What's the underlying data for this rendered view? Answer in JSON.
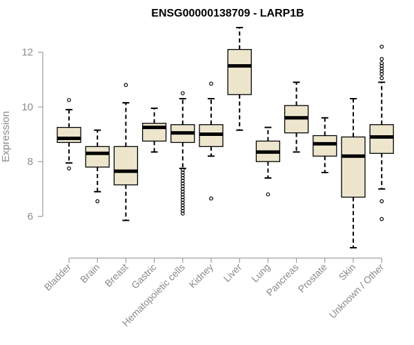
{
  "chart_data": {
    "type": "boxplot",
    "title": "ENSG00000138709 - LARP1B",
    "xlabel": "",
    "ylabel": "Expression",
    "ylim": [
      4.7,
      13.0
    ],
    "yticks": [
      6,
      8,
      10,
      12
    ],
    "colors": {
      "box_fill": "#ede6cd",
      "line": "#000000",
      "axis": "#8a8a8a"
    },
    "categories": [
      "Bladder",
      "Brain",
      "Breast",
      "Gastric",
      "Hematopoietic cells",
      "Kidney",
      "Liver",
      "Lung",
      "Pancreas",
      "Prostate",
      "Skin",
      "Unknown / Other"
    ],
    "boxes": [
      {
        "name": "Bladder",
        "wlo": 7.95,
        "q1": 8.7,
        "median": 8.85,
        "q3": 9.25,
        "whi": 9.9,
        "outliers": [
          7.75,
          10.25
        ]
      },
      {
        "name": "Brain",
        "wlo": 6.9,
        "q1": 7.8,
        "median": 8.3,
        "q3": 8.55,
        "whi": 9.15,
        "outliers": [
          6.55
        ]
      },
      {
        "name": "Breast",
        "wlo": 5.85,
        "q1": 7.15,
        "median": 7.65,
        "q3": 8.55,
        "whi": 10.15,
        "outliers": [
          10.8
        ]
      },
      {
        "name": "Gastric",
        "wlo": 8.35,
        "q1": 8.75,
        "median": 9.25,
        "q3": 9.4,
        "whi": 9.95,
        "outliers": []
      },
      {
        "name": "Hematopoietic cells",
        "wlo": 7.75,
        "q1": 8.7,
        "median": 9.05,
        "q3": 9.35,
        "whi": 10.3,
        "outliers": [
          10.5,
          7.7,
          7.6,
          7.5,
          7.4,
          7.3,
          7.2,
          7.1,
          7.0,
          6.9,
          6.8,
          6.7,
          6.6,
          6.5,
          6.4,
          6.3,
          6.2,
          6.1
        ]
      },
      {
        "name": "Kidney",
        "wlo": 8.2,
        "q1": 8.55,
        "median": 9.0,
        "q3": 9.35,
        "whi": 10.3,
        "outliers": [
          10.85,
          6.65
        ]
      },
      {
        "name": "Liver",
        "wlo": 9.15,
        "q1": 10.45,
        "median": 11.5,
        "q3": 12.1,
        "whi": 12.9,
        "outliers": []
      },
      {
        "name": "Lung",
        "wlo": 7.4,
        "q1": 8.0,
        "median": 8.35,
        "q3": 8.75,
        "whi": 9.25,
        "outliers": [
          6.8
        ]
      },
      {
        "name": "Pancreas",
        "wlo": 8.35,
        "q1": 9.05,
        "median": 9.6,
        "q3": 10.05,
        "whi": 10.9,
        "outliers": []
      },
      {
        "name": "Prostate",
        "wlo": 7.6,
        "q1": 8.2,
        "median": 8.65,
        "q3": 8.95,
        "whi": 9.6,
        "outliers": []
      },
      {
        "name": "Skin",
        "wlo": 4.85,
        "q1": 6.7,
        "median": 8.2,
        "q3": 8.9,
        "whi": 10.3,
        "outliers": []
      },
      {
        "name": "Unknown / Other",
        "wlo": 7.0,
        "q1": 8.3,
        "median": 8.9,
        "q3": 9.35,
        "whi": 10.9,
        "outliers": [
          12.2,
          11.75,
          11.6,
          11.5,
          11.4,
          11.3,
          11.2,
          11.05,
          6.55,
          5.9
        ]
      }
    ]
  }
}
